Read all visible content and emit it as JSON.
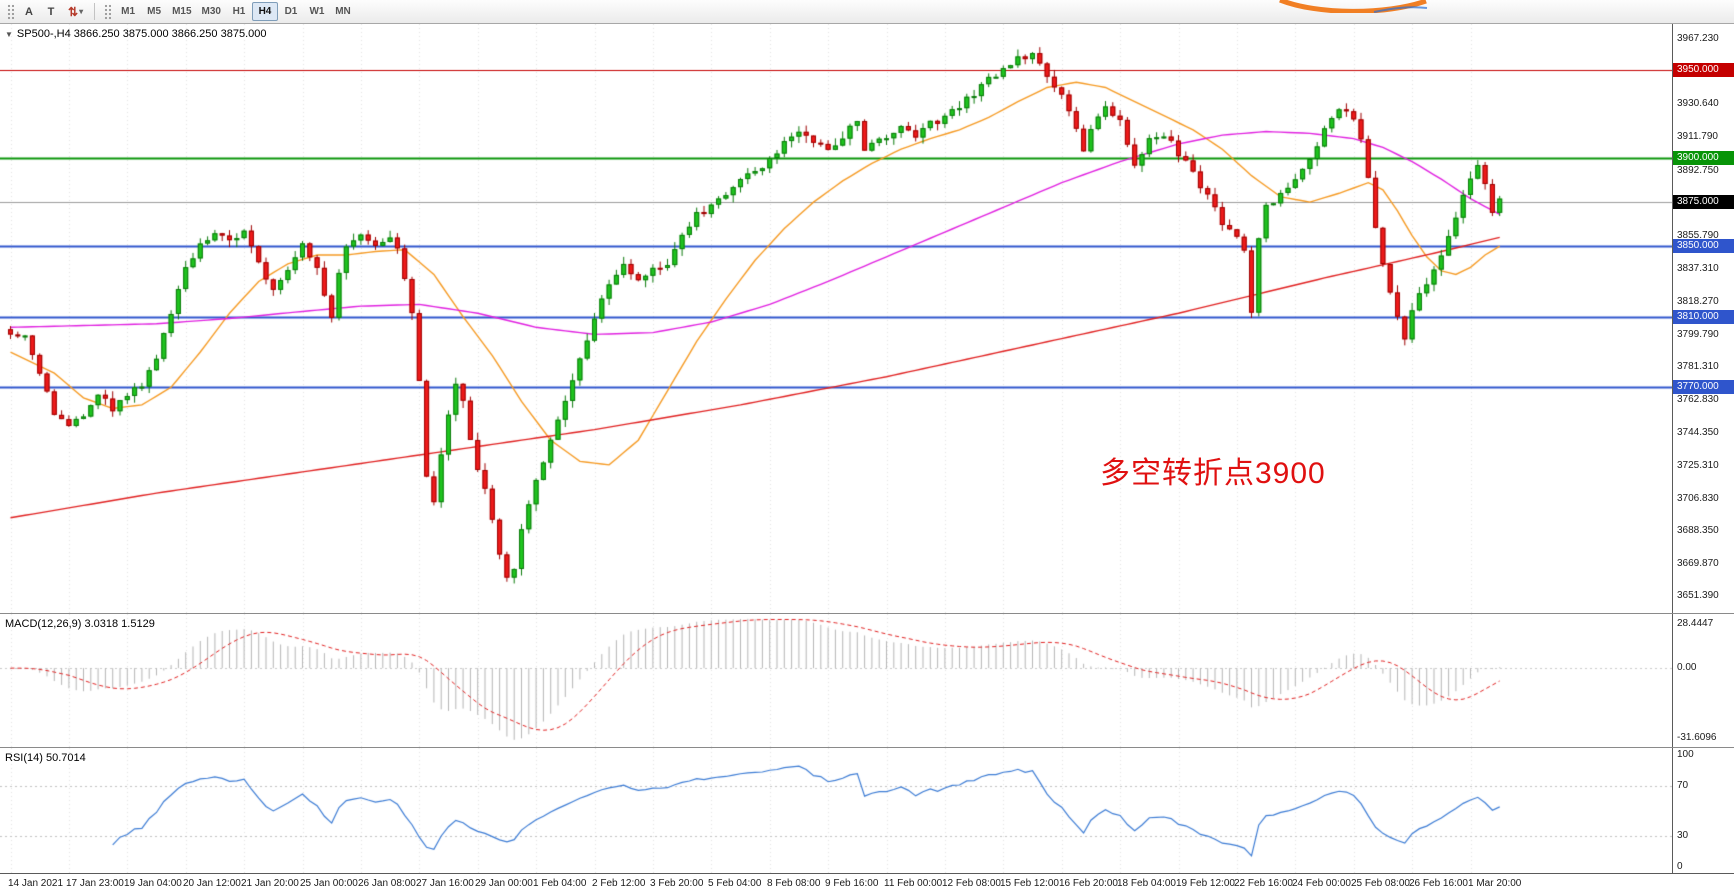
{
  "toolbar": {
    "tool_a": "A",
    "tool_t": "T",
    "arrows_glyph": "⇅",
    "arrows_caret": "▾",
    "timeframes": [
      {
        "label": "M1",
        "active": false
      },
      {
        "label": "M5",
        "active": false
      },
      {
        "label": "M15",
        "active": false
      },
      {
        "label": "M30",
        "active": false
      },
      {
        "label": "H1",
        "active": false
      },
      {
        "label": "H4",
        "active": true
      },
      {
        "label": "D1",
        "active": false
      },
      {
        "label": "W1",
        "active": false
      },
      {
        "label": "MN",
        "active": false
      }
    ]
  },
  "chart": {
    "dropdown_glyph": "▼",
    "title": "SP500-,H4  3866.250 3875.000 3866.250 3875.000",
    "annotation_text": "多空转折点3900",
    "annotation_color": "#e01010",
    "macd_title": "MACD(12,26,9) 3.0318 1.5129",
    "rsi_title": "RSI(14) 50.7014"
  },
  "chart_data": {
    "type": "candlestick+indicators",
    "symbol": "SP500-",
    "timeframe": "H4",
    "ohlc_display": {
      "open": "3866.250",
      "high": "3875.000",
      "low": "3866.250",
      "close": "3875.000"
    },
    "price_axis": {
      "range_top": 3976,
      "range_bottom": 3642,
      "ticks": [
        "3967.230",
        "3930.640",
        "3911.790",
        "3892.750",
        "3855.790",
        "3837.310",
        "3818.270",
        "3799.790",
        "3781.310",
        "3762.830",
        "3744.350",
        "3725.310",
        "3706.830",
        "3688.350",
        "3669.870",
        "3651.390"
      ]
    },
    "levels": [
      {
        "price": 3950.0,
        "label": "3950.000",
        "color": "#c40000",
        "line_width": 1
      },
      {
        "price": 3900.0,
        "label": "3900.000",
        "color": "#089408",
        "line_width": 2
      },
      {
        "price": 3850.0,
        "label": "3850.000",
        "color": "#2f55cc",
        "line_width": 2
      },
      {
        "price": 3810.0,
        "label": "3810.000",
        "color": "#2f55cc",
        "line_width": 2
      },
      {
        "price": 3770.0,
        "label": "3770.000",
        "color": "#2f55cc",
        "line_width": 2
      }
    ],
    "current_price": {
      "price": 3875.0,
      "label": "3875.000",
      "badge_bg": "#000000",
      "line_color": "#9a9a9a"
    },
    "candles": {
      "count": 205,
      "up_fill": "#1fc41f",
      "up_stroke": "#0b7a0b",
      "down_fill": "#ee1a1a",
      "down_stroke": "#9c0000",
      "close_path": [
        [
          0,
          3802
        ],
        [
          2,
          3800
        ],
        [
          4,
          3776
        ],
        [
          6,
          3756
        ],
        [
          8,
          3748
        ],
        [
          10,
          3752
        ],
        [
          12,
          3766
        ],
        [
          14,
          3758
        ],
        [
          16,
          3765
        ],
        [
          18,
          3772
        ],
        [
          20,
          3788
        ],
        [
          22,
          3810
        ],
        [
          24,
          3838
        ],
        [
          26,
          3852
        ],
        [
          28,
          3858
        ],
        [
          30,
          3853
        ],
        [
          32,
          3857
        ],
        [
          34,
          3840
        ],
        [
          36,
          3826
        ],
        [
          38,
          3838
        ],
        [
          40,
          3852
        ],
        [
          42,
          3838
        ],
        [
          44,
          3810
        ],
        [
          45,
          3835
        ],
        [
          46,
          3850
        ],
        [
          48,
          3855
        ],
        [
          50,
          3852
        ],
        [
          52,
          3856
        ],
        [
          53,
          3848
        ],
        [
          54,
          3830
        ],
        [
          55,
          3812
        ],
        [
          56,
          3772
        ],
        [
          57,
          3720
        ],
        [
          58,
          3706
        ],
        [
          59,
          3730
        ],
        [
          60,
          3756
        ],
        [
          61,
          3772
        ],
        [
          62,
          3762
        ],
        [
          63,
          3740
        ],
        [
          64,
          3722
        ],
        [
          65,
          3712
        ],
        [
          66,
          3694
        ],
        [
          67,
          3676
        ],
        [
          68,
          3662
        ],
        [
          69,
          3668
        ],
        [
          70,
          3690
        ],
        [
          71,
          3704
        ],
        [
          72,
          3718
        ],
        [
          74,
          3740
        ],
        [
          76,
          3762
        ],
        [
          78,
          3786
        ],
        [
          80,
          3810
        ],
        [
          82,
          3828
        ],
        [
          84,
          3838
        ],
        [
          86,
          3832
        ],
        [
          88,
          3836
        ],
        [
          90,
          3840
        ],
        [
          92,
          3856
        ],
        [
          94,
          3868
        ],
        [
          96,
          3872
        ],
        [
          98,
          3880
        ],
        [
          100,
          3887
        ],
        [
          102,
          3892
        ],
        [
          104,
          3900
        ],
        [
          106,
          3908
        ],
        [
          108,
          3915
        ],
        [
          110,
          3910
        ],
        [
          112,
          3906
        ],
        [
          114,
          3912
        ],
        [
          116,
          3922
        ],
        [
          117,
          3905
        ],
        [
          118,
          3910
        ],
        [
          120,
          3912
        ],
        [
          122,
          3918
        ],
        [
          124,
          3912
        ],
        [
          126,
          3920
        ],
        [
          128,
          3922
        ],
        [
          130,
          3930
        ],
        [
          132,
          3936
        ],
        [
          134,
          3944
        ],
        [
          136,
          3950
        ],
        [
          138,
          3956
        ],
        [
          140,
          3960
        ],
        [
          141,
          3952
        ],
        [
          142,
          3944
        ],
        [
          144,
          3936
        ],
        [
          146,
          3918
        ],
        [
          147,
          3904
        ],
        [
          148,
          3916
        ],
        [
          150,
          3928
        ],
        [
          152,
          3920
        ],
        [
          154,
          3896
        ],
        [
          156,
          3910
        ],
        [
          158,
          3914
        ],
        [
          160,
          3902
        ],
        [
          162,
          3892
        ],
        [
          164,
          3878
        ],
        [
          166,
          3864
        ],
        [
          168,
          3856
        ],
        [
          169,
          3848
        ],
        [
          170,
          3812
        ],
        [
          171,
          3855
        ],
        [
          172,
          3872
        ],
        [
          174,
          3880
        ],
        [
          176,
          3886
        ],
        [
          178,
          3900
        ],
        [
          180,
          3916
        ],
        [
          182,
          3928
        ],
        [
          184,
          3922
        ],
        [
          185,
          3912
        ],
        [
          186,
          3890
        ],
        [
          187,
          3862
        ],
        [
          188,
          3840
        ],
        [
          189,
          3822
        ],
        [
          190,
          3808
        ],
        [
          191,
          3796
        ],
        [
          192,
          3814
        ],
        [
          194,
          3830
        ],
        [
          196,
          3846
        ],
        [
          198,
          3868
        ],
        [
          200,
          3890
        ],
        [
          201,
          3896
        ],
        [
          202,
          3886
        ],
        [
          203,
          3870
        ],
        [
          204,
          3875
        ]
      ]
    },
    "overlays": [
      {
        "name": "ma-fast-orange",
        "color": "#f59a23",
        "width": 1.4,
        "points": [
          [
            0,
            3790
          ],
          [
            6,
            3778
          ],
          [
            10,
            3764
          ],
          [
            14,
            3758
          ],
          [
            18,
            3760
          ],
          [
            22,
            3770
          ],
          [
            26,
            3790
          ],
          [
            30,
            3812
          ],
          [
            34,
            3830
          ],
          [
            38,
            3840
          ],
          [
            42,
            3845
          ],
          [
            46,
            3845
          ],
          [
            50,
            3847
          ],
          [
            54,
            3848
          ],
          [
            58,
            3834
          ],
          [
            62,
            3810
          ],
          [
            66,
            3788
          ],
          [
            70,
            3762
          ],
          [
            74,
            3740
          ],
          [
            78,
            3728
          ],
          [
            82,
            3726
          ],
          [
            86,
            3740
          ],
          [
            90,
            3768
          ],
          [
            94,
            3796
          ],
          [
            98,
            3820
          ],
          [
            102,
            3842
          ],
          [
            106,
            3860
          ],
          [
            110,
            3875
          ],
          [
            114,
            3887
          ],
          [
            118,
            3897
          ],
          [
            122,
            3905
          ],
          [
            126,
            3911
          ],
          [
            130,
            3916
          ],
          [
            134,
            3923
          ],
          [
            138,
            3932
          ],
          [
            142,
            3940
          ],
          [
            146,
            3943
          ],
          [
            150,
            3940
          ],
          [
            154,
            3932
          ],
          [
            158,
            3924
          ],
          [
            162,
            3916
          ],
          [
            166,
            3905
          ],
          [
            170,
            3890
          ],
          [
            174,
            3878
          ],
          [
            178,
            3875
          ],
          [
            182,
            3880
          ],
          [
            186,
            3886
          ],
          [
            188,
            3882
          ],
          [
            190,
            3870
          ],
          [
            192,
            3856
          ],
          [
            194,
            3844
          ],
          [
            196,
            3836
          ],
          [
            198,
            3834
          ],
          [
            200,
            3838
          ],
          [
            202,
            3845
          ],
          [
            204,
            3850
          ]
        ]
      },
      {
        "name": "ma-mid-magenta",
        "color": "#e020e0",
        "width": 1.4,
        "points": [
          [
            0,
            3804
          ],
          [
            10,
            3805
          ],
          [
            20,
            3806
          ],
          [
            30,
            3809
          ],
          [
            40,
            3813
          ],
          [
            48,
            3816
          ],
          [
            56,
            3817
          ],
          [
            64,
            3812
          ],
          [
            72,
            3804
          ],
          [
            80,
            3800
          ],
          [
            88,
            3801
          ],
          [
            96,
            3807
          ],
          [
            104,
            3817
          ],
          [
            112,
            3830
          ],
          [
            120,
            3844
          ],
          [
            128,
            3858
          ],
          [
            136,
            3872
          ],
          [
            144,
            3886
          ],
          [
            152,
            3898
          ],
          [
            160,
            3908
          ],
          [
            166,
            3913
          ],
          [
            172,
            3915
          ],
          [
            178,
            3914
          ],
          [
            184,
            3911
          ],
          [
            188,
            3906
          ],
          [
            192,
            3898
          ],
          [
            196,
            3888
          ],
          [
            200,
            3877
          ],
          [
            204,
            3868
          ]
        ]
      },
      {
        "name": "ma-slow-red",
        "color": "#e02020",
        "width": 1.4,
        "points": [
          [
            0,
            3696
          ],
          [
            20,
            3710
          ],
          [
            40,
            3722
          ],
          [
            60,
            3734
          ],
          [
            80,
            3746
          ],
          [
            100,
            3760
          ],
          [
            120,
            3776
          ],
          [
            140,
            3794
          ],
          [
            160,
            3812
          ],
          [
            180,
            3832
          ],
          [
            195,
            3846
          ],
          [
            204,
            3855
          ]
        ]
      }
    ],
    "macd": {
      "params": "12,26,9",
      "value": "3.0318",
      "signal_value": "1.5129",
      "axis_labels": [
        "28.4447",
        "0.00",
        "-31.6096"
      ],
      "hist_color": "#b5b5b5",
      "signal_color": "#e02020"
    },
    "rsi": {
      "period": 14,
      "value": "50.7014",
      "axis_labels": [
        "100",
        "70",
        "30",
        "0"
      ],
      "levels": [
        70,
        30
      ],
      "line_color": "#3b7bd4"
    },
    "time_axis": {
      "tick_every_candles": 8,
      "labels": [
        "14 Jan 2021",
        "17 Jan 23:00",
        "19 Jan 04:00",
        "20 Jan 12:00",
        "21 Jan 20:00",
        "25 Jan 00:00",
        "26 Jan 08:00",
        "27 Jan 16:00",
        "29 Jan 00:00",
        "1 Feb 04:00",
        "2 Feb 12:00",
        "3 Feb 20:00",
        "5 Feb 04:00",
        "8 Feb 08:00",
        "9 Feb 16:00",
        "11 Feb 00:00",
        "12 Feb 08:00",
        "15 Feb 12:00",
        "16 Feb 20:00",
        "18 Feb 04:00",
        "19 Feb 12:00",
        "22 Feb 16:00",
        "24 Feb 00:00",
        "25 Feb 08:00",
        "26 Feb 16:00",
        "1 Mar 20:00"
      ]
    }
  }
}
